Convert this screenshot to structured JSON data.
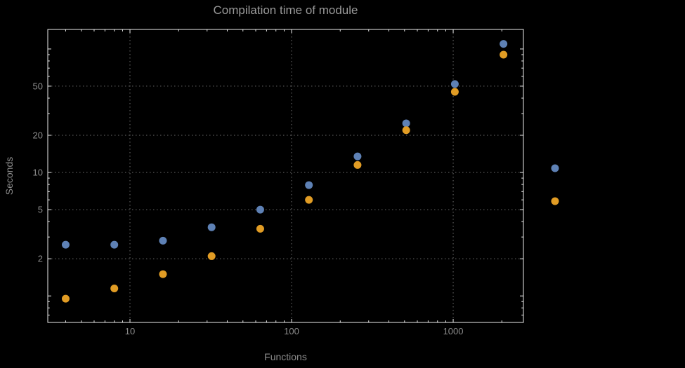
{
  "chart_data": {
    "type": "scatter",
    "title": "Compilation time of module",
    "xlabel": "Functions",
    "ylabel": "Seconds",
    "x_scale": "log",
    "y_scale": "log",
    "grid": true,
    "xlim": [
      3.1,
      2720
    ],
    "ylim": [
      0.61,
      144
    ],
    "x_ticks": [
      10,
      100,
      1000
    ],
    "x_tick_labels": [
      "10",
      "100",
      "1000"
    ],
    "y_ticks": [
      2,
      5,
      10,
      20,
      50
    ],
    "y_tick_labels": [
      "2",
      "5",
      "10",
      "20",
      "50"
    ],
    "series": [
      {
        "name": "blue",
        "color": "#5e81b5",
        "x": [
          4,
          8,
          16,
          32,
          64,
          128,
          256,
          512,
          1024,
          2048
        ],
        "y": [
          2.6,
          2.6,
          2.8,
          3.6,
          5.0,
          7.9,
          13.5,
          25,
          52,
          110
        ]
      },
      {
        "name": "orange",
        "color": "#e19c24",
        "x": [
          4,
          8,
          16,
          32,
          64,
          128,
          256,
          512,
          1024,
          2048
        ],
        "y": [
          0.95,
          1.15,
          1.5,
          2.1,
          3.5,
          6.0,
          11.5,
          22,
          45,
          90
        ]
      }
    ],
    "legend": {
      "position": "right",
      "items": [
        {
          "label": "",
          "color": "#5e81b5"
        },
        {
          "label": "",
          "color": "#e19c24"
        }
      ]
    },
    "colors": {
      "background": "#000000",
      "frame": "#ededed",
      "grid": "#6e6e6e",
      "text": "#8c8c8c",
      "text_title": "#9a9a9a"
    }
  }
}
